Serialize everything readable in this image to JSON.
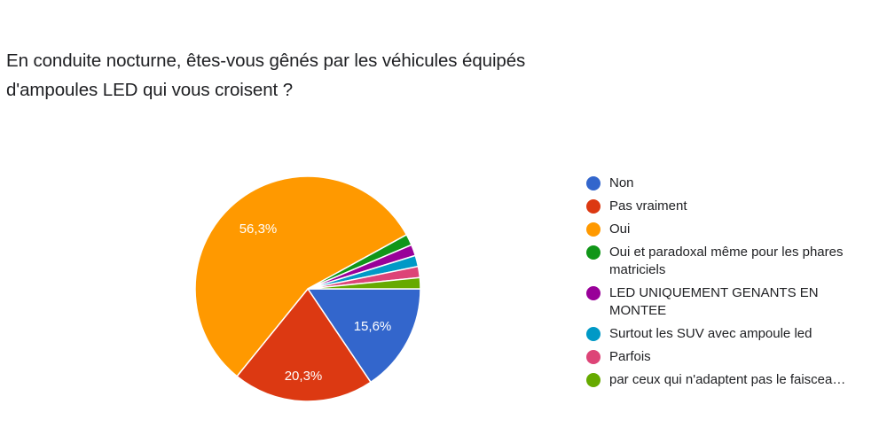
{
  "chart_data": {
    "type": "pie",
    "title": "En conduite nocturne, êtes-vous gênés par les véhicules équipés d'ampoules LED qui vous croisent ?",
    "categories": [
      "Non",
      "Pas vraiment",
      "Oui",
      "Oui et paradoxal même pour les phares matriciels",
      "LED UNIQUEMENT GENANTS EN MONTEE",
      "Surtout les SUV avec ampoule led",
      "Parfois",
      "par ceux qui n'adaptent pas le faiscea…"
    ],
    "values": [
      15.6,
      20.3,
      56.3,
      1.6,
      1.6,
      1.6,
      1.6,
      1.6
    ],
    "unit": "%",
    "data_labels": [
      "15,6%",
      "20,3%",
      "56,3%",
      "",
      "",
      "",
      "",
      ""
    ],
    "colors": [
      "#3366cc",
      "#dc3912",
      "#ff9900",
      "#109618",
      "#990099",
      "#0099c6",
      "#dd4477",
      "#66aa00"
    ],
    "legend_position": "right"
  },
  "title_line1": "En conduite nocturne, êtes-vous gênés par les véhicules équipés",
  "title_line2": "d'ampoules LED qui vous croisent ?",
  "legend": [
    {
      "label": "Non",
      "color": "#3366cc"
    },
    {
      "label": "Pas vraiment",
      "color": "#dc3912"
    },
    {
      "label": "Oui",
      "color": "#ff9900"
    },
    {
      "label": "Oui et paradoxal même pour les phares matriciels",
      "color": "#109618"
    },
    {
      "label": "LED UNIQUEMENT GENANTS EN MONTEE",
      "color": "#990099"
    },
    {
      "label": "Surtout les SUV avec ampoule led",
      "color": "#0099c6"
    },
    {
      "label": "Parfois",
      "color": "#dd4477"
    },
    {
      "label": "par ceux qui n'adaptent pas le faiscea…",
      "color": "#66aa00"
    }
  ],
  "labels": {
    "non": "15,6%",
    "pas_vraiment": "20,3%",
    "oui": "56,3%"
  }
}
